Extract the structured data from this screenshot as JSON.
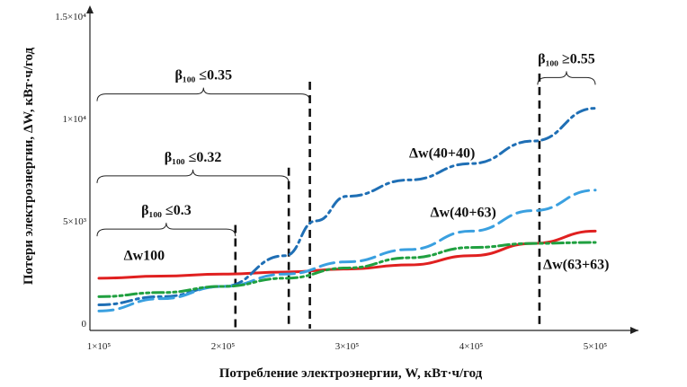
{
  "chart_data": {
    "type": "line",
    "title": "",
    "xlabel": "Потребление электроэнергии, W, кВт·ч/год",
    "ylabel": "Потери электроэнергии, ΔW, кВт·ч/год",
    "xlim": [
      100000,
      520000
    ],
    "ylim": [
      0,
      15000
    ],
    "grid": false,
    "legend": "none",
    "x_ticks": [
      {
        "value": 100000,
        "label": "1×10⁵"
      },
      {
        "value": 200000,
        "label": "2×10⁵"
      },
      {
        "value": 300000,
        "label": "3×10⁵"
      },
      {
        "value": 400000,
        "label": "4×10⁵"
      },
      {
        "value": 500000,
        "label": "5×10⁵"
      }
    ],
    "y_ticks": [
      {
        "value": 0,
        "label": "0"
      },
      {
        "value": 5000,
        "label": "5×10³"
      },
      {
        "value": 10000,
        "label": "1×10⁴"
      },
      {
        "value": 15000,
        "label": "1.5×10⁴"
      }
    ],
    "series": [
      {
        "name": "Δw100",
        "color": "#e02020",
        "dash": "solid",
        "x": [
          100000,
          150000,
          200000,
          250000,
          300000,
          350000,
          400000,
          450000,
          500000
        ],
        "y": [
          2200,
          2300,
          2400,
          2500,
          2650,
          2850,
          3300,
          3900,
          4500
        ]
      },
      {
        "name": "Δw(40+40)",
        "color": "#1f6fb5",
        "dash": "dashdot",
        "x": [
          100000,
          150000,
          200000,
          250000,
          275000,
          300000,
          350000,
          400000,
          450000,
          500000
        ],
        "y": [
          900,
          1300,
          1800,
          3300,
          5000,
          6200,
          7000,
          7800,
          8900,
          10500
        ]
      },
      {
        "name": "Δw(40+63)",
        "color": "#3aa0e0",
        "dash": "longdash",
        "x": [
          100000,
          150000,
          200000,
          250000,
          300000,
          350000,
          400000,
          450000,
          500000
        ],
        "y": [
          600,
          1200,
          1800,
          2400,
          3000,
          3600,
          4500,
          5500,
          6500
        ]
      },
      {
        "name": "Δw(63+63)",
        "color": "#20a040",
        "dash": "dashdotdot",
        "x": [
          100000,
          150000,
          200000,
          250000,
          300000,
          350000,
          400000,
          450000,
          500000
        ],
        "y": [
          1300,
          1500,
          1800,
          2200,
          2700,
          3200,
          3700,
          3900,
          3950
        ]
      }
    ],
    "series_labels": [
      {
        "text": "Δw100",
        "x": 120000,
        "y": 3100
      },
      {
        "text": "Δw(40+40)",
        "x": 350000,
        "y": 8100
      },
      {
        "text": "Δw(40+63)",
        "x": 367000,
        "y": 5200
      },
      {
        "text": "Δw(63+63)",
        "x": 458000,
        "y": 2650
      }
    ],
    "vertical_markers": [
      {
        "x": 210000,
        "y_top": 4800
      },
      {
        "x": 253000,
        "y_top": 7600
      },
      {
        "x": 270000,
        "y_top": 11800
      },
      {
        "x": 455000,
        "y_top": 12200
      }
    ],
    "annotations": [
      {
        "label": "β₁₀₀ ≤0.35",
        "x_start": 100000,
        "x_end": 270000,
        "y": 11200
      },
      {
        "label": "β₁₀₀ ≤0.32",
        "x_start": 100000,
        "x_end": 253000,
        "y": 7200
      },
      {
        "label": "β₁₀₀ ≤0.3",
        "x_start": 100000,
        "x_end": 210000,
        "y": 4600
      },
      {
        "label": "β₁₀₀ ≥0.55",
        "x_start": 455000,
        "x_end": 500000,
        "y": 12000
      }
    ]
  }
}
